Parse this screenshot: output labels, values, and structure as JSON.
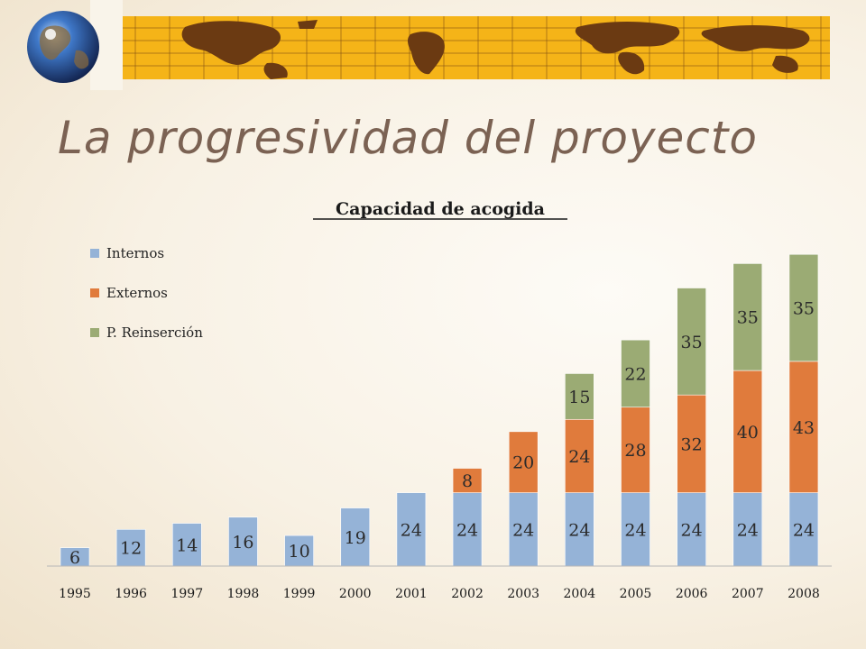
{
  "slide": {
    "title": "La progresividad del proyecto"
  },
  "colors": {
    "banner": "#f5b418",
    "continent": "#6b3a12",
    "internos": "#95b3d7",
    "externos": "#e07b3c",
    "reinsercion": "#9bab74"
  },
  "icons": [
    "globe-icon",
    "world-map-banner"
  ],
  "chart_data": {
    "type": "bar",
    "stacked": true,
    "title": "Capacidad de acogida",
    "xlabel": "",
    "ylabel": "",
    "ylim": [
      0,
      102
    ],
    "grid": false,
    "legend_position": "top-left",
    "categories": [
      "1995",
      "1996",
      "1997",
      "1998",
      "1999",
      "2000",
      "2001",
      "2002",
      "2003",
      "2004",
      "2005",
      "2006",
      "2007",
      "2008"
    ],
    "series": [
      {
        "name": "Internos",
        "color": "#95b3d7",
        "values": [
          6,
          12,
          14,
          16,
          10,
          19,
          24,
          24,
          24,
          24,
          24,
          24,
          24,
          24
        ],
        "labels": [
          "6",
          "12",
          "14",
          "16",
          "10",
          "19",
          "24",
          "24",
          "24",
          "24",
          "24",
          "24",
          "24",
          "24"
        ]
      },
      {
        "name": "Externos",
        "color": "#e07b3c",
        "values": [
          0,
          0,
          0,
          0,
          0,
          0,
          0,
          8,
          20,
          24,
          28,
          32,
          40,
          43
        ],
        "labels": [
          "",
          "",
          "",
          "",
          "",
          "",
          "",
          "8",
          "20",
          "24",
          "28",
          "32",
          "40",
          "43"
        ]
      },
      {
        "name": "P. Reinserción",
        "color": "#9bab74",
        "values": [
          0,
          0,
          0,
          0,
          0,
          0,
          0,
          0,
          0,
          15,
          22,
          35,
          35,
          35
        ],
        "labels": [
          "",
          "",
          "",
          "",
          "",
          "",
          "",
          "",
          "",
          "15",
          "22",
          "35",
          "35",
          "35"
        ]
      }
    ]
  }
}
